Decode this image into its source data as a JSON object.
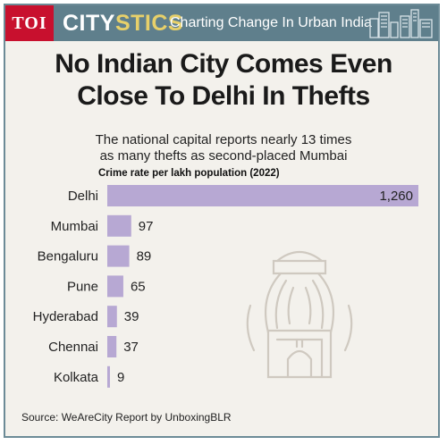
{
  "header": {
    "logo": "TOI",
    "brand_part1": "CITY",
    "brand_part2": "STICS",
    "tagline": "Charting Change In Urban India"
  },
  "headline": {
    "line1": "No Indian City Comes Even",
    "line2": "Close To Delhi In Thefts"
  },
  "subtitle": {
    "line1": "The national capital reports nearly 13 times",
    "line2": "as many thefts as second-placed Mumbai"
  },
  "source": "Source: WeAreCity Report by UnboxingBLR",
  "colors": {
    "header_bg": "#5f7f8c",
    "logo_bg": "#c8102e",
    "brand_accent": "#e7d06a",
    "bar": "#b7a8d3",
    "background": "#f3f1ec"
  },
  "icons": {
    "skyline": "city-skyline-icon",
    "watermark": "monument-lineart-icon"
  },
  "chart_data": {
    "type": "bar",
    "orientation": "horizontal",
    "title": "Crime rate per lakh population (2022)",
    "categories": [
      "Delhi",
      "Mumbai",
      "Bengaluru",
      "Pune",
      "Hyderabad",
      "Chennai",
      "Kolkata"
    ],
    "values": [
      1260,
      97,
      89,
      65,
      39,
      37,
      9
    ],
    "value_labels": [
      "1,260",
      "97",
      "89",
      "65",
      "39",
      "37",
      "9"
    ],
    "xlim": [
      0,
      1260
    ],
    "grid": false,
    "legend": "none"
  }
}
